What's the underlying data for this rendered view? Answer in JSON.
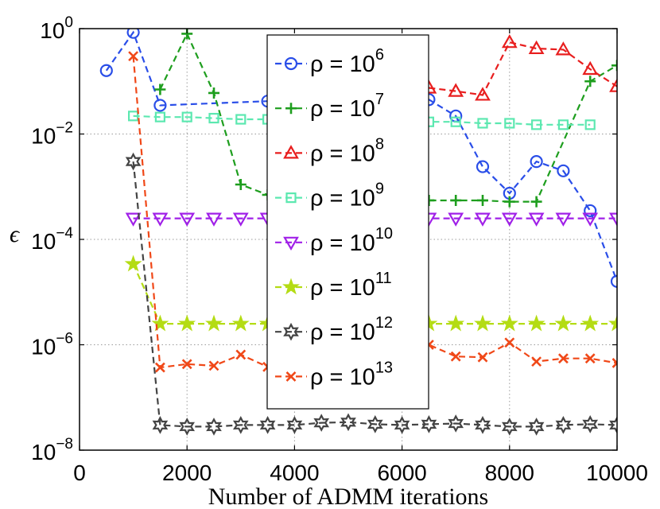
{
  "chart_data": {
    "type": "line",
    "title": "",
    "xlabel": "Number of ADMM iterations",
    "ylabel": "ϵ",
    "xlim": [
      0,
      10000
    ],
    "ylim_log10": [
      -8,
      0
    ],
    "yscale": "log",
    "grid": true,
    "legend_position": "top-center",
    "x_ticks": [
      {
        "value": 0,
        "label": "0"
      },
      {
        "value": 2000,
        "label": "2000"
      },
      {
        "value": 4000,
        "label": "4000"
      },
      {
        "value": 6000,
        "label": "6000"
      },
      {
        "value": 8000,
        "label": "8000"
      },
      {
        "value": 10000,
        "label": "10000"
      }
    ],
    "y_ticks": [
      {
        "exp": 0,
        "base": "10",
        "sup": "0"
      },
      {
        "exp": -2,
        "base": "10",
        "sup": "−2"
      },
      {
        "exp": -4,
        "base": "10",
        "sup": "−4"
      },
      {
        "exp": -6,
        "base": "10",
        "sup": "−6"
      },
      {
        "exp": -8,
        "base": "10",
        "sup": "−8"
      }
    ],
    "series": [
      {
        "name": "ρ = 10^6",
        "legend_base": "ρ = 10",
        "legend_sup": "6",
        "color": "#2a4ee8",
        "marker": "circle",
        "points": [
          [
            500,
            0.16
          ],
          [
            1000,
            0.85
          ],
          [
            1500,
            0.035
          ],
          [
            3500,
            0.042
          ],
          [
            6500,
            0.045
          ],
          [
            7000,
            0.022
          ],
          [
            7500,
            0.0024
          ],
          [
            8000,
            0.00075
          ],
          [
            8500,
            0.003
          ],
          [
            9000,
            0.002
          ],
          [
            9500,
            0.00035
          ],
          [
            10000,
            1.6e-05
          ]
        ]
      },
      {
        "name": "ρ = 10^7",
        "legend_base": "ρ = 10",
        "legend_sup": "7",
        "color": "#1e9e1e",
        "marker": "plus",
        "points": [
          [
            1500,
            0.07
          ],
          [
            2000,
            0.8
          ],
          [
            2500,
            0.06
          ],
          [
            3000,
            0.0011
          ],
          [
            3500,
            0.0007
          ],
          [
            6000,
            0.00055
          ],
          [
            6500,
            0.00055
          ],
          [
            7000,
            0.00055
          ],
          [
            7500,
            0.00055
          ],
          [
            8000,
            0.00052
          ],
          [
            8500,
            0.00052
          ],
          [
            9500,
            0.1
          ],
          [
            10000,
            0.2
          ]
        ]
      },
      {
        "name": "ρ = 10^8",
        "legend_base": "ρ = 10",
        "legend_sup": "8",
        "color": "#e81e1e",
        "marker": "triangle-up",
        "points": [
          [
            6500,
            0.075
          ],
          [
            7000,
            0.065
          ],
          [
            7500,
            0.055
          ],
          [
            8000,
            0.55
          ],
          [
            8500,
            0.42
          ],
          [
            9000,
            0.4
          ],
          [
            9500,
            0.17
          ],
          [
            10000,
            0.08
          ]
        ]
      },
      {
        "name": "ρ = 10^9",
        "legend_base": "ρ = 10",
        "legend_sup": "9",
        "color": "#5ce8b0",
        "marker": "square",
        "points": [
          [
            1000,
            0.022
          ],
          [
            1500,
            0.021
          ],
          [
            2000,
            0.021
          ],
          [
            2500,
            0.02
          ],
          [
            3000,
            0.019
          ],
          [
            3500,
            0.019
          ],
          [
            6500,
            0.017
          ],
          [
            7000,
            0.017
          ],
          [
            7500,
            0.016
          ],
          [
            8000,
            0.016
          ],
          [
            8500,
            0.015
          ],
          [
            9000,
            0.015
          ],
          [
            9500,
            0.015
          ]
        ]
      },
      {
        "name": "ρ = 10^10",
        "legend_base": "ρ = 10",
        "legend_sup": "10",
        "color": "#a020e8",
        "marker": "triangle-down",
        "points": [
          [
            1000,
            0.00025
          ],
          [
            1500,
            0.00025
          ],
          [
            2000,
            0.00025
          ],
          [
            2500,
            0.00025
          ],
          [
            3000,
            0.00025
          ],
          [
            3500,
            0.00025
          ],
          [
            6000,
            0.00025
          ],
          [
            6500,
            0.00025
          ],
          [
            7000,
            0.00025
          ],
          [
            7500,
            0.00025
          ],
          [
            8000,
            0.00025
          ],
          [
            8500,
            0.00025
          ],
          [
            9000,
            0.00025
          ],
          [
            9500,
            0.00025
          ],
          [
            10000,
            0.00025
          ]
        ]
      },
      {
        "name": "ρ = 10^11",
        "legend_base": "ρ = 10",
        "legend_sup": "11",
        "color": "#b4dc14",
        "marker": "star",
        "points": [
          [
            1000,
            3.4e-05
          ],
          [
            1500,
            2.5e-06
          ],
          [
            2000,
            2.5e-06
          ],
          [
            2500,
            2.5e-06
          ],
          [
            3000,
            2.5e-06
          ],
          [
            3500,
            2.5e-06
          ],
          [
            6000,
            2.5e-06
          ],
          [
            6500,
            2.5e-06
          ],
          [
            7000,
            2.5e-06
          ],
          [
            7500,
            2.5e-06
          ],
          [
            8000,
            2.5e-06
          ],
          [
            8500,
            2.5e-06
          ],
          [
            9000,
            2.5e-06
          ],
          [
            9500,
            2.5e-06
          ],
          [
            10000,
            2.5e-06
          ]
        ]
      },
      {
        "name": "ρ = 10^12",
        "legend_base": "ρ = 10",
        "legend_sup": "12",
        "color": "#444444",
        "marker": "hexagram",
        "points": [
          [
            1000,
            0.003
          ],
          [
            1500,
            3e-08
          ],
          [
            2000,
            2.8e-08
          ],
          [
            2500,
            2.8e-08
          ],
          [
            3000,
            3e-08
          ],
          [
            3500,
            3e-08
          ],
          [
            4000,
            3e-08
          ],
          [
            4500,
            3.3e-08
          ],
          [
            5000,
            3.4e-08
          ],
          [
            5500,
            3.1e-08
          ],
          [
            6000,
            3e-08
          ],
          [
            6500,
            3.1e-08
          ],
          [
            7000,
            3.2e-08
          ],
          [
            7500,
            3e-08
          ],
          [
            8000,
            2.8e-08
          ],
          [
            8500,
            2.8e-08
          ],
          [
            9000,
            3e-08
          ],
          [
            9500,
            3.1e-08
          ],
          [
            10000,
            3e-08
          ]
        ]
      },
      {
        "name": "ρ = 10^13",
        "legend_base": "ρ = 10",
        "legend_sup": "13",
        "color": "#f04818",
        "marker": "x",
        "points": [
          [
            1000,
            0.3
          ],
          [
            1500,
            3.7e-07
          ],
          [
            2000,
            4.3e-07
          ],
          [
            2500,
            4e-07
          ],
          [
            3000,
            6.5e-07
          ],
          [
            3500,
            3.8e-07
          ],
          [
            6500,
            1e-06
          ],
          [
            7000,
            6e-07
          ],
          [
            7500,
            5.8e-07
          ],
          [
            8000,
            1.1e-06
          ],
          [
            8500,
            4.8e-07
          ],
          [
            9000,
            5.5e-07
          ],
          [
            9500,
            5.5e-07
          ],
          [
            10000,
            4.5e-07
          ]
        ]
      }
    ]
  }
}
